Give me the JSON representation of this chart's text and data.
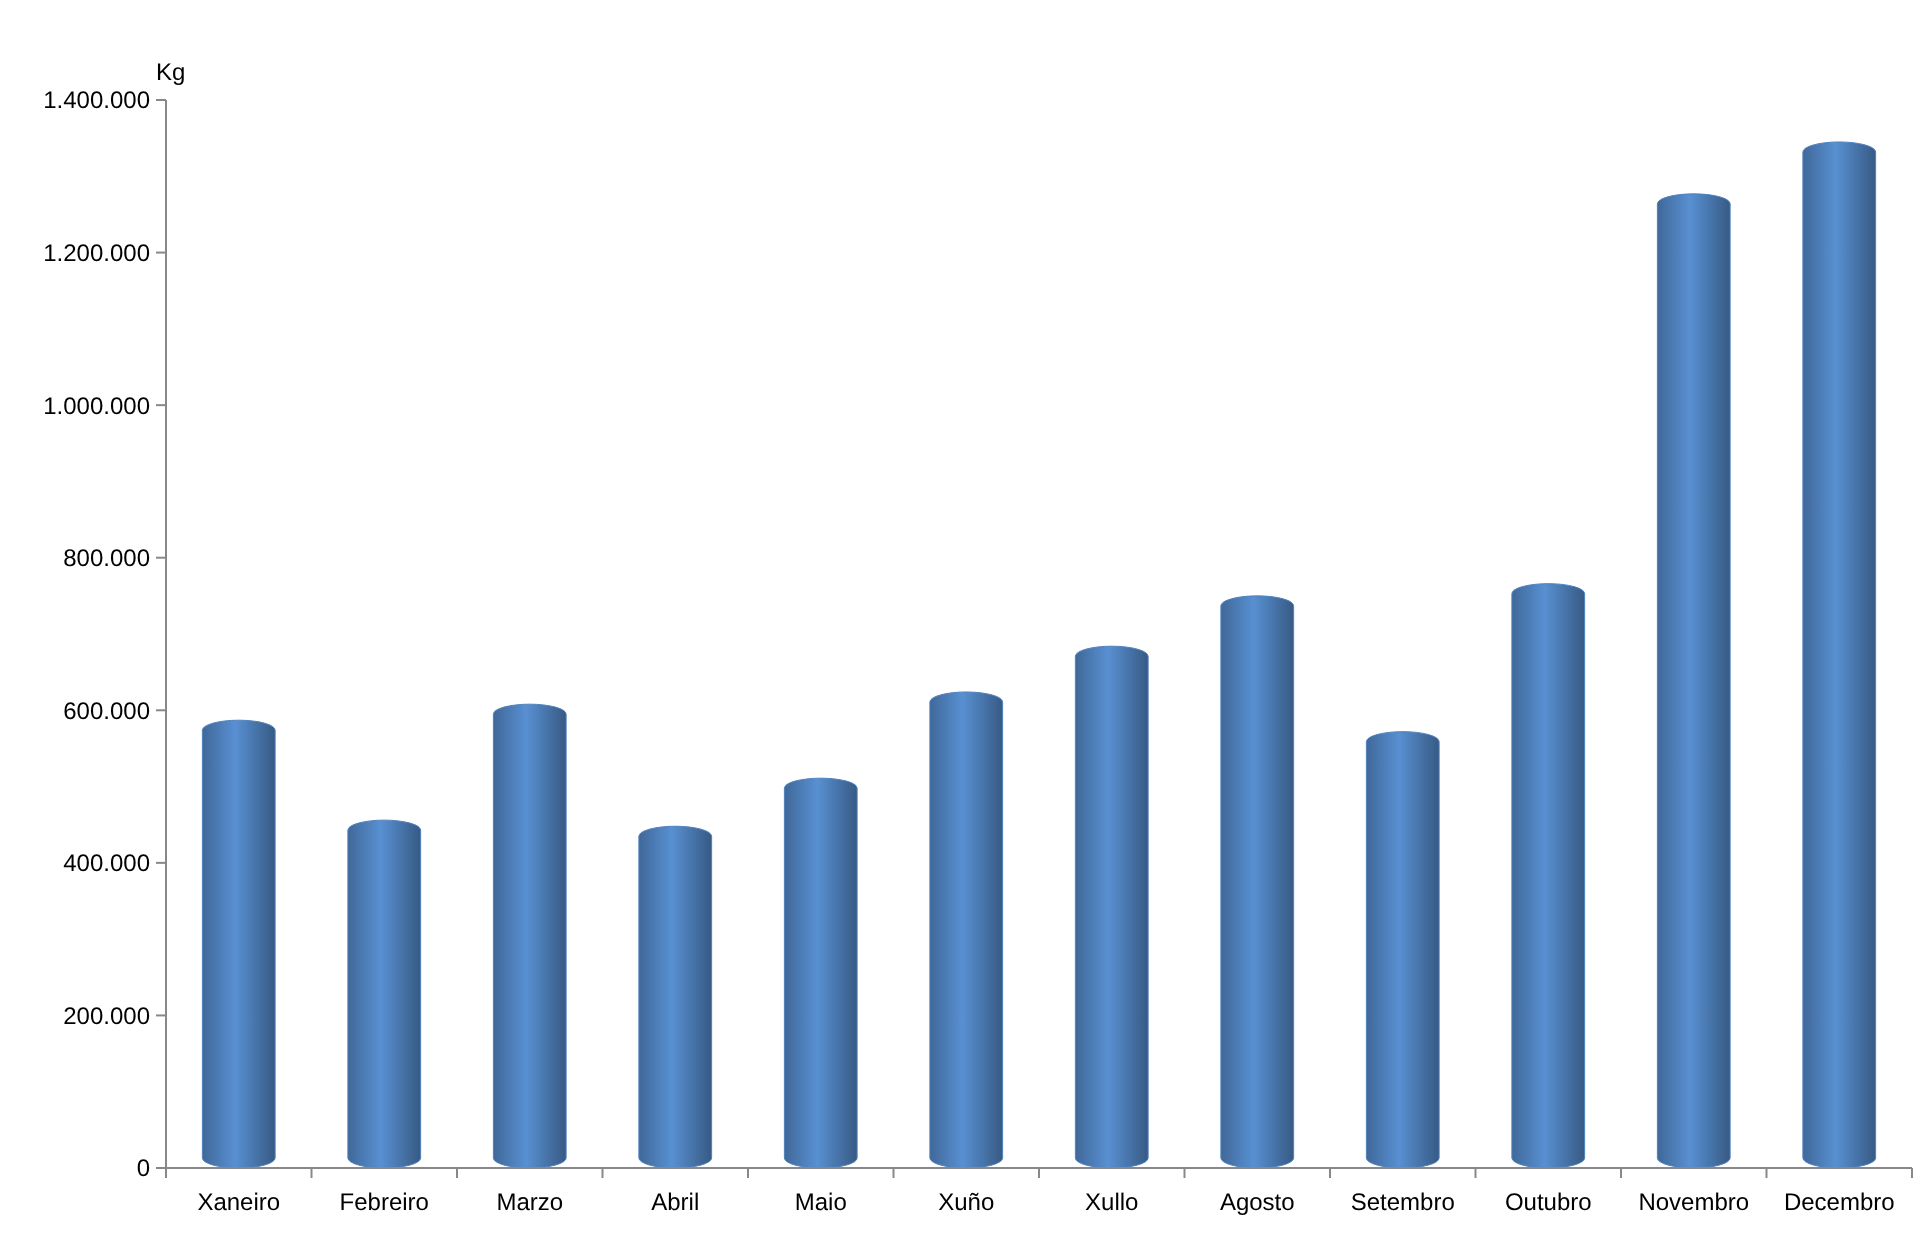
{
  "chart_data": {
    "type": "bar",
    "ylabel": "Kg",
    "categories": [
      "Xaneiro",
      "Febreiro",
      "Marzo",
      "Abril",
      "Maio",
      "Xuño",
      "Xullo",
      "Agosto",
      "Setembro",
      "Outubro",
      "Novembro",
      "Decembro"
    ],
    "values": [
      587000,
      456000,
      608000,
      448000,
      511000,
      624000,
      684000,
      750000,
      572000,
      766000,
      1277000,
      1345000
    ],
    "color": "#4f81bd",
    "ylim": [
      0,
      1400000
    ],
    "yticks": [
      {
        "value": 0,
        "label": "0"
      },
      {
        "value": 200000,
        "label": "200.000"
      },
      {
        "value": 400000,
        "label": "400.000"
      },
      {
        "value": 600000,
        "label": "600.000"
      },
      {
        "value": 800000,
        "label": "800.000"
      },
      {
        "value": 1000000,
        "label": "1.000.000"
      },
      {
        "value": 1200000,
        "label": "1.200.000"
      },
      {
        "value": 1400000,
        "label": "1.400.000"
      }
    ],
    "grid": false
  }
}
